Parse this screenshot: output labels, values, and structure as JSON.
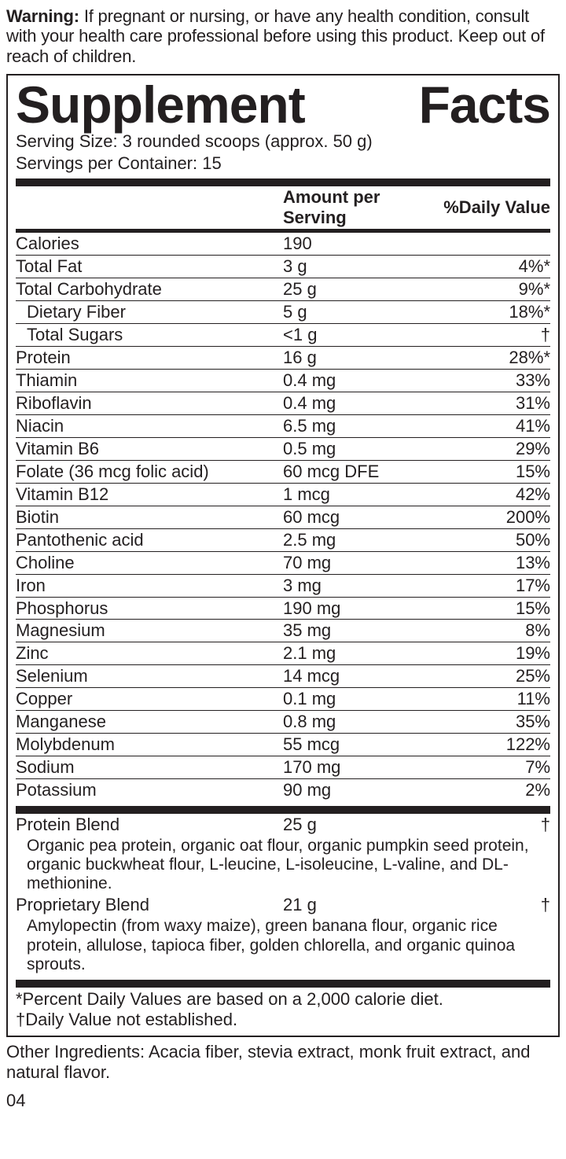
{
  "warning_label": "Warning:",
  "warning_text": " If pregnant or nursing, or have any health condition, consult with your health care professional before using this product. Keep out of reach of children.",
  "title_a": "Supplement",
  "title_b": "Facts",
  "serving_size": "Serving Size: 3 rounded scoops (approx. 50 g)",
  "servings_per": "Servings per Container: 15",
  "hdr_amount": "Amount per Serving",
  "hdr_dv": "%Daily Value",
  "rows": [
    {
      "name": "Calories",
      "amt": "190",
      "dv": "",
      "indent": false
    },
    {
      "name": "Total Fat",
      "amt": "3 g",
      "dv": "4%*",
      "indent": false
    },
    {
      "name": "Total Carbohydrate",
      "amt": "25 g",
      "dv": "9%*",
      "indent": false
    },
    {
      "name": "Dietary Fiber",
      "amt": "5 g",
      "dv": "18%*",
      "indent": true
    },
    {
      "name": "Total Sugars",
      "amt": "<1 g",
      "dv": "†",
      "indent": true
    },
    {
      "name": "Protein",
      "amt": "16 g",
      "dv": "28%*",
      "indent": false
    },
    {
      "name": "Thiamin",
      "amt": "0.4 mg",
      "dv": "33%",
      "indent": false
    },
    {
      "name": "Riboflavin",
      "amt": "0.4 mg",
      "dv": "31%",
      "indent": false
    },
    {
      "name": "Niacin",
      "amt": "6.5 mg",
      "dv": "41%",
      "indent": false
    },
    {
      "name": "Vitamin B6",
      "amt": "0.5 mg",
      "dv": "29%",
      "indent": false
    },
    {
      "name": "Folate (36 mcg folic acid)",
      "amt": "60 mcg DFE",
      "dv": "15%",
      "indent": false
    },
    {
      "name": "Vitamin B12",
      "amt": "1 mcg",
      "dv": "42%",
      "indent": false
    },
    {
      "name": "Biotin",
      "amt": "60 mcg",
      "dv": "200%",
      "indent": false
    },
    {
      "name": "Pantothenic acid",
      "amt": "2.5 mg",
      "dv": "50%",
      "indent": false
    },
    {
      "name": "Choline",
      "amt": "70 mg",
      "dv": "13%",
      "indent": false
    },
    {
      "name": "Iron",
      "amt": "3 mg",
      "dv": "17%",
      "indent": false
    },
    {
      "name": "Phosphorus",
      "amt": "190 mg",
      "dv": "15%",
      "indent": false
    },
    {
      "name": "Magnesium",
      "amt": "35 mg",
      "dv": "8%",
      "indent": false
    },
    {
      "name": "Zinc",
      "amt": "2.1 mg",
      "dv": "19%",
      "indent": false
    },
    {
      "name": "Selenium",
      "amt": "14 mcg",
      "dv": "25%",
      "indent": false
    },
    {
      "name": "Copper",
      "amt": "0.1 mg",
      "dv": "11%",
      "indent": false
    },
    {
      "name": "Manganese",
      "amt": "0.8 mg",
      "dv": "35%",
      "indent": false
    },
    {
      "name": "Molybdenum",
      "amt": "55 mcg",
      "dv": "122%",
      "indent": false
    },
    {
      "name": "Sodium",
      "amt": "170 mg",
      "dv": "7%",
      "indent": false
    },
    {
      "name": "Potassium",
      "amt": "90 mg",
      "dv": "2%",
      "indent": false
    }
  ],
  "blends": [
    {
      "name": "Protein Blend",
      "amt": "25 g",
      "dv": "†",
      "desc": "Organic pea protein, organic oat flour, organic pumpkin seed protein, organic buckwheat flour, L-leucine, L-isoleucine, L-valine, and DL-methionine."
    },
    {
      "name": "Proprietary Blend",
      "amt": "21 g",
      "dv": "†",
      "desc": "Amylopectin (from waxy maize), green banana flour, organic rice protein, allulose, tapioca fiber, golden chlorella, and organic quinoa sprouts."
    }
  ],
  "footnote1": "*Percent Daily Values are based on a 2,000 calorie diet.",
  "footnote2": "†Daily Value not established.",
  "other_ingredients": "Other Ingredients: Acacia fiber, stevia extract, monk fruit extract, and natural flavor.",
  "page_number": "04"
}
